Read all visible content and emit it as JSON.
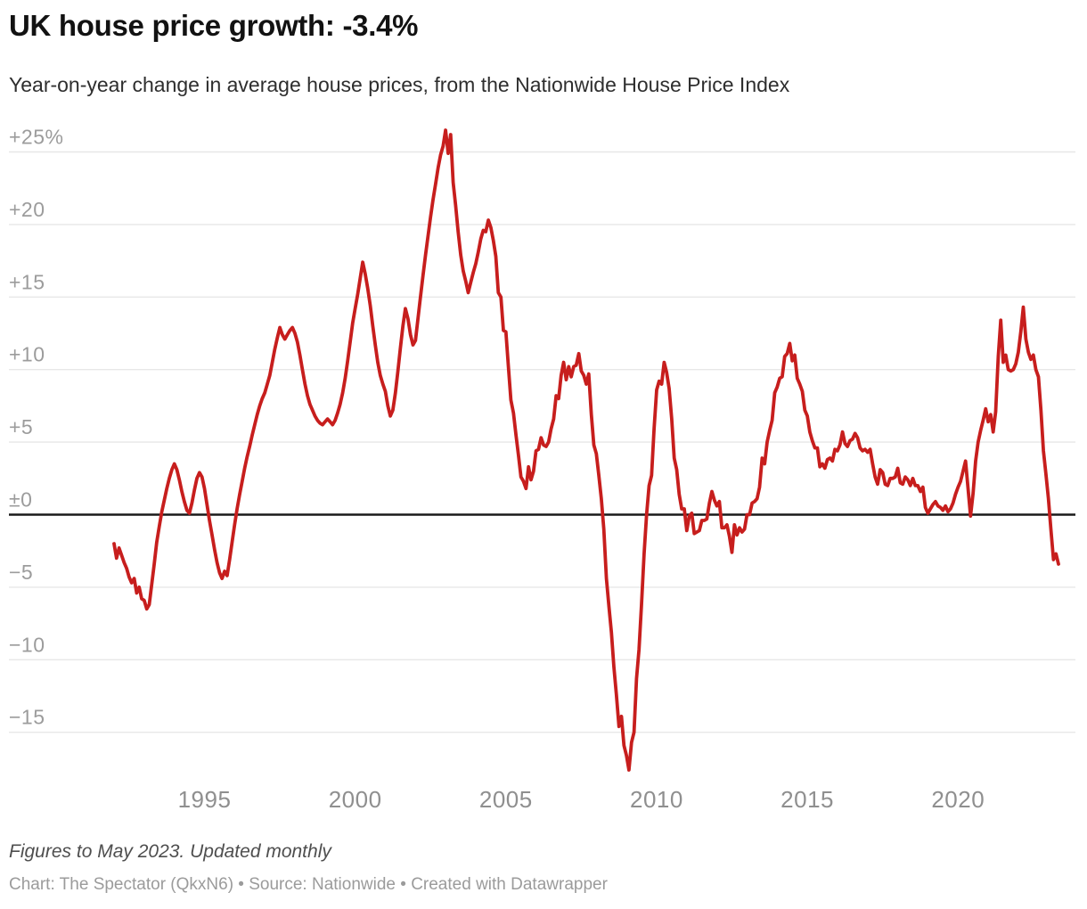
{
  "header": {
    "title": "UK house price growth: -3.4%",
    "subtitle": "Year-on-year change in average house prices, from the Nationwide House Price Index"
  },
  "footer": {
    "note": "Figures to May 2023. Updated monthly",
    "credit": "Chart: The Spectator (QkxN6) • Source: Nationwide • Created with Datawrapper"
  },
  "chart_data": {
    "type": "line",
    "title": "UK house price growth: -3.4%",
    "subtitle": "Year-on-year change in average house prices, from the Nationwide House Price Index",
    "xlabel": "",
    "ylabel": "",
    "unit": "%",
    "grid": true,
    "legend": "none",
    "zero_baseline": true,
    "ylim": [
      -19,
      27
    ],
    "xlim_years": [
      1991.9,
      2023.5
    ],
    "latest_value": -3.4,
    "latest_period": "May 2023",
    "colors": {
      "line": "#c71e1d",
      "grid": "#e7e7e7",
      "zero_line": "#1a1a1a",
      "y_label": "#9c9c9c",
      "x_label": "#8f8f8f"
    },
    "x_axis": {
      "ticks": [
        1995,
        2000,
        2005,
        2010,
        2015,
        2020
      ]
    },
    "y_axis": {
      "ticks": [
        {
          "value": 25,
          "label": "+25%"
        },
        {
          "value": 20,
          "label": "+20"
        },
        {
          "value": 15,
          "label": "+15"
        },
        {
          "value": 10,
          "label": "+10"
        },
        {
          "value": 5,
          "label": "+5"
        },
        {
          "value": 0,
          "label": "±0"
        },
        {
          "value": -5,
          "label": "−5"
        },
        {
          "value": -10,
          "label": "−10"
        },
        {
          "value": -15,
          "label": "−15"
        }
      ]
    },
    "series": [
      {
        "name": "Year-on-year change in average house prices (%)",
        "start_year": 1992,
        "start_month": 1,
        "frequency": "monthly",
        "values": [
          -2.0,
          -3.0,
          -2.3,
          -2.8,
          -3.3,
          -3.7,
          -4.3,
          -4.7,
          -4.4,
          -5.4,
          -5.0,
          -5.8,
          -5.9,
          -6.5,
          -6.2,
          -4.8,
          -3.4,
          -1.9,
          -0.8,
          0.2,
          1.0,
          1.8,
          2.5,
          3.1,
          3.5,
          3.1,
          2.4,
          1.6,
          0.9,
          0.3,
          0.1,
          0.8,
          1.7,
          2.5,
          2.9,
          2.6,
          1.8,
          0.7,
          -0.4,
          -1.4,
          -2.4,
          -3.3,
          -4.0,
          -4.4,
          -3.9,
          -4.2,
          -3.1,
          -1.9,
          -0.7,
          0.4,
          1.4,
          2.3,
          3.2,
          4.0,
          4.7,
          5.5,
          6.2,
          6.9,
          7.5,
          8.0,
          8.4,
          9.0,
          9.6,
          10.5,
          11.4,
          12.2,
          12.9,
          12.4,
          12.1,
          12.4,
          12.7,
          12.9,
          12.5,
          11.9,
          11.0,
          10.0,
          9.0,
          8.2,
          7.6,
          7.2,
          6.8,
          6.5,
          6.3,
          6.2,
          6.4,
          6.6,
          6.4,
          6.2,
          6.5,
          7.0,
          7.6,
          8.4,
          9.4,
          10.6,
          11.9,
          13.2,
          14.2,
          15.2,
          16.3,
          17.4,
          16.6,
          15.6,
          14.4,
          13.0,
          11.7,
          10.5,
          9.6,
          9.0,
          8.5,
          7.5,
          6.8,
          7.2,
          8.4,
          9.9,
          11.5,
          13.0,
          14.2,
          13.5,
          12.4,
          11.7,
          12.0,
          13.5,
          15.0,
          16.5,
          17.9,
          19.2,
          20.5,
          21.7,
          22.8,
          23.9,
          24.8,
          25.4,
          26.5,
          24.9,
          26.2,
          22.9,
          21.3,
          19.5,
          17.9,
          16.8,
          16.1,
          15.3,
          16.0,
          16.7,
          17.3,
          18.1,
          19.0,
          19.6,
          19.5,
          20.3,
          19.8,
          18.9,
          17.8,
          15.3,
          15.0,
          12.7,
          12.6,
          10.2,
          7.9,
          7.0,
          5.5,
          4.1,
          2.6,
          2.3,
          1.8,
          3.3,
          2.4,
          3.0,
          4.4,
          4.5,
          5.3,
          4.8,
          4.7,
          5.0,
          5.9,
          6.6,
          8.2,
          8.0,
          9.6,
          10.5,
          9.3,
          10.2,
          9.5,
          10.2,
          10.3,
          11.1,
          9.9,
          9.6,
          9.0,
          9.7,
          6.9,
          4.8,
          4.2,
          2.7,
          1.1,
          -1.0,
          -4.4,
          -6.3,
          -8.1,
          -10.5,
          -12.4,
          -14.6,
          -13.9,
          -15.9,
          -16.6,
          -17.6,
          -15.7,
          -15.0,
          -11.3,
          -9.3,
          -6.2,
          -2.7,
          0.0,
          2.0,
          2.7,
          5.9,
          8.6,
          9.2,
          9.0,
          10.5,
          9.8,
          8.7,
          6.6,
          3.9,
          3.1,
          1.4,
          0.4,
          0.4,
          -1.1,
          -0.1,
          0.1,
          -1.3,
          -1.2,
          -1.1,
          -0.4,
          -0.4,
          -0.3,
          0.8,
          1.6,
          1.0,
          0.6,
          0.9,
          -0.9,
          -0.9,
          -0.7,
          -1.5,
          -2.6,
          -0.7,
          -1.4,
          -0.9,
          -1.2,
          -1.0,
          0.0,
          0.0,
          0.8,
          0.9,
          1.1,
          1.9,
          3.9,
          3.5,
          5.0,
          5.8,
          6.5,
          8.4,
          8.8,
          9.4,
          9.5,
          10.9,
          11.1,
          11.8,
          10.6,
          11.0,
          9.4,
          9.0,
          8.5,
          7.2,
          6.8,
          5.7,
          5.1,
          4.6,
          4.6,
          3.3,
          3.5,
          3.2,
          3.8,
          3.9,
          3.7,
          4.5,
          4.4,
          4.8,
          5.7,
          4.9,
          4.7,
          5.1,
          5.2,
          5.6,
          5.3,
          4.6,
          4.4,
          4.5,
          4.3,
          4.5,
          3.5,
          2.6,
          2.1,
          3.1,
          2.9,
          2.1,
          2.0,
          2.5,
          2.5,
          2.6,
          3.2,
          2.2,
          2.1,
          2.6,
          2.4,
          2.0,
          2.5,
          2.0,
          2.0,
          1.6,
          1.9,
          0.5,
          0.1,
          0.4,
          0.7,
          0.9,
          0.6,
          0.5,
          0.3,
          0.6,
          0.2,
          0.4,
          0.8,
          1.4,
          1.9,
          2.3,
          3.0,
          3.7,
          1.8,
          -0.1,
          1.5,
          3.7,
          5.0,
          5.8,
          6.5,
          7.3,
          6.4,
          6.9,
          5.7,
          7.1,
          10.9,
          13.4,
          10.5,
          11.0,
          10.0,
          9.9,
          10.0,
          10.4,
          11.2,
          12.6,
          14.3,
          12.1,
          11.2,
          10.7,
          11.0,
          10.0,
          9.5,
          7.2,
          4.4,
          2.8,
          1.1,
          -1.1,
          -3.1,
          -2.7,
          -3.4
        ]
      }
    ]
  }
}
